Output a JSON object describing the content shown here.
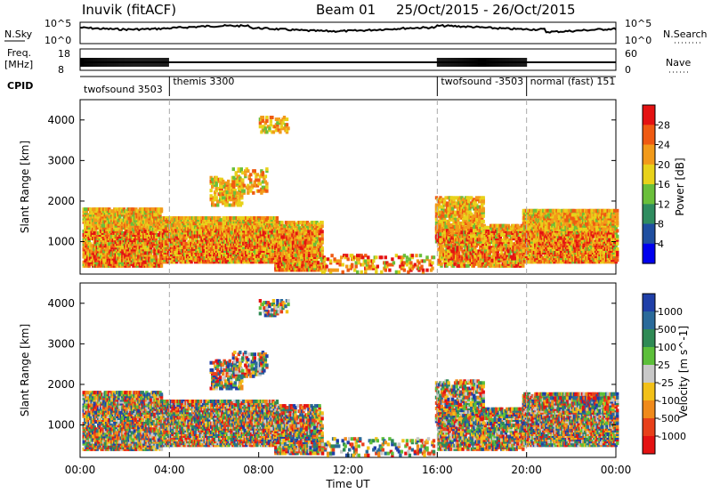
{
  "header": {
    "station": "Inuvik (fitACF)",
    "beam": "Beam 01",
    "dates": "25/Oct/2015 - 26/Oct/2015"
  },
  "small_panels": {
    "nsky_label": "N.Sky",
    "nsearch_label": "N.Search",
    "nsky_ticks": [
      "10^5",
      "10^0"
    ],
    "nsearch_ticks": [
      "10^5",
      "10^0"
    ],
    "freq_label": "Freq.",
    "freq_unit": "[MHz]",
    "freq_ticks": [
      "18",
      "8"
    ],
    "nave_label": "Nave",
    "nave_ticks": [
      "60",
      "0"
    ],
    "cpid_label": "CPID",
    "cpid_segments": [
      {
        "label": "twofsound 3503",
        "start": 0.0
      },
      {
        "label": "themis 3300",
        "start": 4.0
      },
      {
        "label": "twofsound -3503",
        "start": 16.0
      },
      {
        "label": "normal (fast) 151",
        "start": 20.0
      }
    ]
  },
  "chart_data": [
    {
      "type": "heatmap",
      "title": "",
      "xlabel": "",
      "ylabel": "Slant Range [km]",
      "xlim": [
        0,
        24
      ],
      "ylim": [
        200,
        4500
      ],
      "yticks": [
        "1000",
        "2000",
        "3000",
        "4000"
      ],
      "colorbar": {
        "label": "Power [dB]",
        "ticks": [
          "4",
          "8",
          "12",
          "16",
          "20",
          "24",
          "28"
        ],
        "colors": [
          "#0000ee",
          "#1f4fa0",
          "#2f8c5f",
          "#6abf3a",
          "#e8d21a",
          "#f29a1a",
          "#ef5a12",
          "#e41212"
        ]
      },
      "vertical_markers": [
        4,
        16,
        20
      ]
    },
    {
      "type": "heatmap",
      "title": "",
      "xlabel": "Time UT",
      "ylabel": "Slant Range [km]",
      "xlim": [
        0,
        24
      ],
      "ylim": [
        200,
        4500
      ],
      "xticks": [
        "00:00",
        "04:00",
        "08:00",
        "12:00",
        "16:00",
        "20:00",
        "00:00"
      ],
      "yticks": [
        "1000",
        "2000",
        "3000",
        "4000"
      ],
      "colorbar": {
        "label": "Velocity [m s^-1]",
        "ticks": [
          "1000",
          "500",
          "100",
          "25",
          "-25",
          "-100",
          "-500",
          "-1000"
        ],
        "colors": [
          "#1f3fa8",
          "#2a6a9a",
          "#2f8a55",
          "#5cbf3a",
          "#c8c8c8",
          "#f2c018",
          "#f08a1a",
          "#e8401a",
          "#e41212"
        ]
      },
      "vertical_markers": [
        4,
        16,
        20
      ]
    }
  ]
}
